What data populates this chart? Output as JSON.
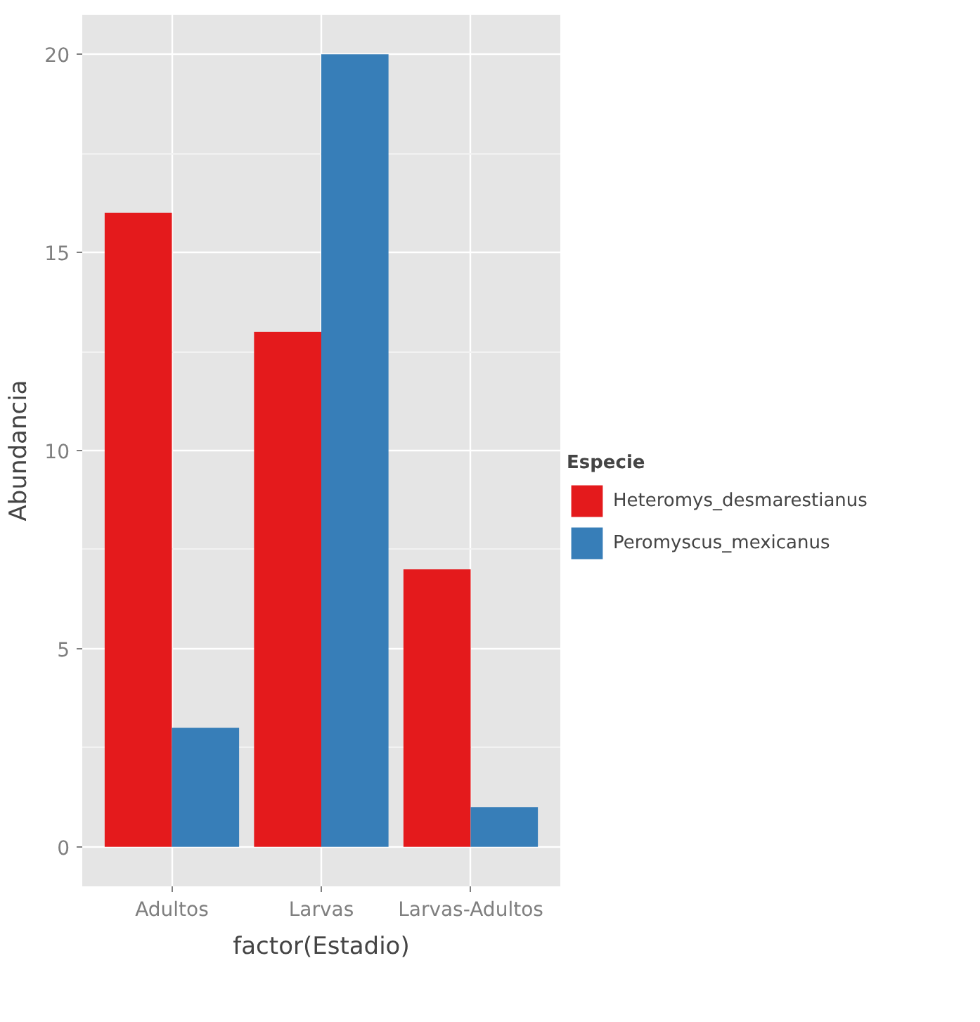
{
  "chart_data": {
    "type": "bar",
    "xlabel": "factor(Estadio)",
    "ylabel": "Abundancia",
    "legend_title": "Especie",
    "categories": [
      "Adultos",
      "Larvas",
      "Larvas-Adultos"
    ],
    "series": [
      {
        "name": "Heteromys_desmarestianus",
        "color": "#e41a1c",
        "values": [
          16,
          13,
          7
        ]
      },
      {
        "name": "Peromyscus_mexicanus",
        "color": "#377eb8",
        "values": [
          3,
          20,
          1
        ]
      }
    ],
    "ylim": [
      -1,
      21
    ],
    "yticks": [
      0,
      5,
      10,
      15,
      20
    ],
    "grid": true,
    "legend": "right"
  }
}
